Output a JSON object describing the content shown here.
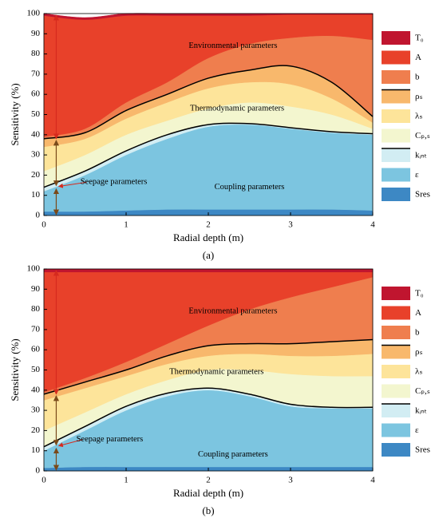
{
  "chart_data": [
    {
      "type": "stacked_area",
      "caption": "(a)",
      "xlabel": "Radial depth (m)",
      "ylabel": "Sensitivity (%)",
      "x": [
        0,
        0.5,
        1,
        1.5,
        2,
        2.5,
        3,
        3.5,
        4
      ],
      "xlim": [
        0,
        4
      ],
      "xticks": [
        0,
        1,
        2,
        3,
        4
      ],
      "ylim": [
        0,
        100
      ],
      "yticks": [
        0,
        10,
        20,
        30,
        40,
        50,
        60,
        70,
        80,
        90,
        100
      ],
      "annotations": [
        "Environmental parameters",
        "Thermodynamic parameters",
        "Seepage parameters",
        "Coupling parameters"
      ],
      "series": [
        {
          "name": "T₀",
          "color": "#c0152f",
          "values": [
            1,
            1,
            1,
            1,
            1,
            1,
            0.5,
            0.5,
            0.5
          ]
        },
        {
          "name": "A",
          "color": "#e8412a",
          "values": [
            60,
            54,
            43,
            33,
            21,
            14,
            11.5,
            10.5,
            12.5
          ]
        },
        {
          "name": "b",
          "color": "#ef7e4e",
          "values": [
            1,
            2,
            4,
            6,
            10,
            13,
            14,
            23,
            38
          ]
        },
        {
          "name": "ρₛ",
          "color": "#f8b86c",
          "outline": true,
          "values": [
            4,
            3,
            4,
            4,
            5,
            6,
            9,
            8,
            3
          ]
        },
        {
          "name": "λₛ",
          "color": "#fde49a",
          "values": [
            12,
            8,
            8,
            9,
            10,
            10,
            11,
            8,
            3
          ]
        },
        {
          "name": "Cₚ,ₛ",
          "color": "#f3f6cf",
          "values": [
            8,
            8,
            8,
            7,
            8,
            10.5,
            10.5,
            8.5,
            2.5
          ]
        },
        {
          "name": "kᵢₙₜ",
          "color": "#d2edf3",
          "outline": true,
          "values": [
            2,
            2,
            2,
            2,
            1,
            0.5,
            0.5,
            0.5,
            0.5
          ]
        },
        {
          "name": "ε",
          "color": "#7cc5e0",
          "values": [
            10,
            18,
            27.5,
            35,
            41,
            42,
            40,
            38,
            37.5
          ]
        },
        {
          "name": "Sres",
          "color": "#3d88c4",
          "values": [
            2,
            2,
            2.5,
            3,
            3,
            3,
            3,
            3,
            2.5
          ]
        }
      ]
    },
    {
      "type": "stacked_area",
      "caption": "(b)",
      "xlabel": "Radial depth (m)",
      "ylabel": "Sensitivity (%)",
      "x": [
        0,
        0.5,
        1,
        1.5,
        2,
        2.5,
        3,
        3.5,
        4
      ],
      "xlim": [
        0,
        4
      ],
      "xticks": [
        0,
        1,
        2,
        3,
        4
      ],
      "ylim": [
        0,
        100
      ],
      "yticks": [
        0,
        10,
        20,
        30,
        40,
        50,
        60,
        70,
        80,
        90,
        100
      ],
      "annotations": [
        "Environmental parameters",
        "Thermodynamic parameters",
        "Seepage parameters",
        "Coupling parameters"
      ],
      "series": [
        {
          "name": "T₀",
          "color": "#c0152f",
          "values": [
            1.5,
            1.5,
            1.5,
            1.5,
            1.5,
            1.5,
            1.5,
            1.5,
            1.5
          ]
        },
        {
          "name": "A",
          "color": "#e8412a",
          "values": [
            59.5,
            52.5,
            44.5,
            35.5,
            26.5,
            18.5,
            12.5,
            7.5,
            2.5
          ]
        },
        {
          "name": "b",
          "color": "#ef7e4e",
          "values": [
            1,
            2,
            4,
            6,
            10,
            17,
            23,
            27,
            31
          ]
        },
        {
          "name": "ρₛ",
          "color": "#f8b86c",
          "outline": true,
          "values": [
            3,
            3,
            3,
            4,
            5,
            5,
            6,
            7,
            7
          ]
        },
        {
          "name": "λₛ",
          "color": "#fde49a",
          "values": [
            15,
            12,
            9,
            8,
            7,
            8,
            9,
            10,
            11
          ]
        },
        {
          "name": "Cₚ,ₛ",
          "color": "#f3f6cf",
          "values": [
            8,
            7,
            6,
            6.5,
            9,
            12,
            15,
            15.5,
            15.5
          ]
        },
        {
          "name": "kᵢₙₜ",
          "color": "#d2edf3",
          "outline": true,
          "values": [
            2,
            2,
            2,
            1.5,
            1,
            1,
            1,
            0.5,
            0.5
          ]
        },
        {
          "name": "ε",
          "color": "#7cc5e0",
          "values": [
            8.5,
            18,
            28,
            35,
            38,
            35,
            30,
            29,
            29
          ]
        },
        {
          "name": "Sres",
          "color": "#3d88c4",
          "values": [
            1.5,
            2,
            2,
            2,
            2,
            2,
            2,
            2,
            2
          ]
        }
      ]
    }
  ]
}
